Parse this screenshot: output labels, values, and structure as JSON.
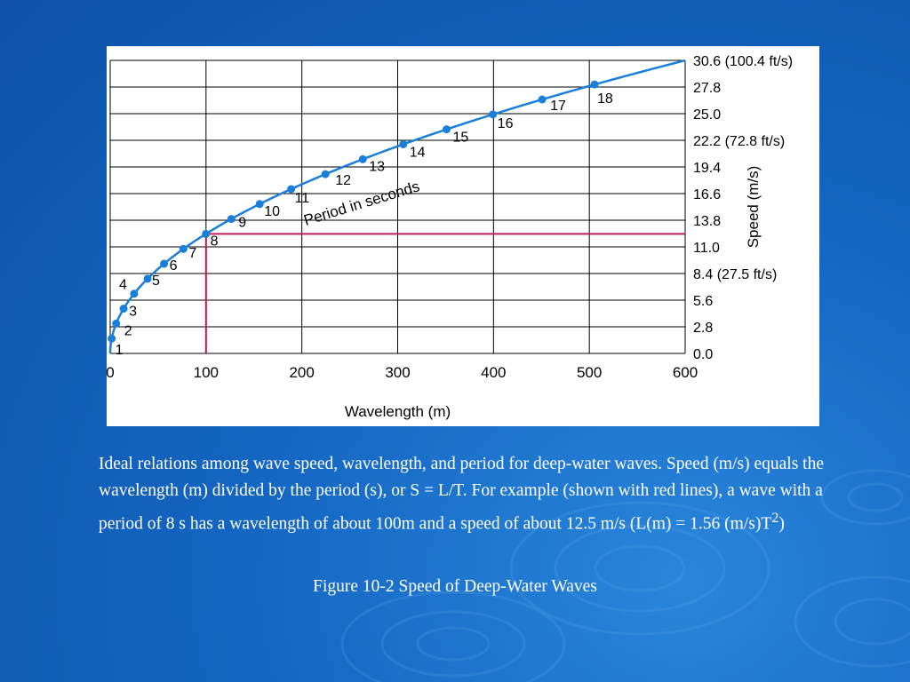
{
  "caption": {
    "text": "Ideal relations among wave speed, wavelength, and period for deep-water waves. Speed (m/s) equals the wavelength (m) divided by the period (s), or S = L/T. For example (shown with red lines), a wave with a period of 8 s has a wavelength of about 100m and a speed of about 12.5 m/s (L(m) = 1.56 (m/s)T",
    "superscript": "2",
    "close": ")"
  },
  "figure_title": "Figure 10-2 Speed of Deep-Water Waves",
  "colors": {
    "curve": "#1a7fd8",
    "highlight": "#c2185b",
    "grid": "#000000"
  },
  "chart_data": {
    "type": "line",
    "xlabel": "Wavelength (m)",
    "ylabel": "Speed (m/s)",
    "curve_label": "Period in seconds",
    "xlim": [
      0,
      600
    ],
    "ylim": [
      0,
      30.6
    ],
    "x_ticks": [
      "0",
      "100",
      "200",
      "300",
      "400",
      "500",
      "600"
    ],
    "y_ticks": [
      "0.0",
      "2.8",
      "5.6",
      "8.4 (27.5 ft/s)",
      "11.0",
      "13.8",
      "16.6",
      "19.4",
      "22.2 (72.8 ft/s)",
      "25.0",
      "27.8",
      "30.6 (100.4 ft/s)"
    ],
    "relation": "L(m) = 1.56 (m/s)T^2",
    "points": [
      {
        "period": "1",
        "x": 1.56,
        "y": 1.56
      },
      {
        "period": "2",
        "x": 6.24,
        "y": 3.12
      },
      {
        "period": "3",
        "x": 14.0,
        "y": 4.68
      },
      {
        "period": "4",
        "x": 25.0,
        "y": 6.24
      },
      {
        "period": "5",
        "x": 39.0,
        "y": 7.8
      },
      {
        "period": "6",
        "x": 56.2,
        "y": 9.36
      },
      {
        "period": "7",
        "x": 76.4,
        "y": 10.92
      },
      {
        "period": "8",
        "x": 99.8,
        "y": 12.48
      },
      {
        "period": "9",
        "x": 126.4,
        "y": 14.04
      },
      {
        "period": "10",
        "x": 156.0,
        "y": 15.6
      },
      {
        "period": "11",
        "x": 188.8,
        "y": 17.16
      },
      {
        "period": "12",
        "x": 224.6,
        "y": 18.72
      },
      {
        "period": "13",
        "x": 263.6,
        "y": 20.28
      },
      {
        "period": "14",
        "x": 305.8,
        "y": 21.84
      },
      {
        "period": "15",
        "x": 351.0,
        "y": 23.4
      },
      {
        "period": "16",
        "x": 399.4,
        "y": 24.96
      },
      {
        "period": "17",
        "x": 450.8,
        "y": 26.52
      },
      {
        "period": "18",
        "x": 505.4,
        "y": 28.08
      }
    ],
    "highlight": {
      "x": 100,
      "y": 12.48
    }
  }
}
